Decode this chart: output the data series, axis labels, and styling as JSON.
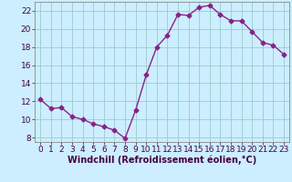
{
  "x": [
    0,
    1,
    2,
    3,
    4,
    5,
    6,
    7,
    8,
    9,
    10,
    11,
    12,
    13,
    14,
    15,
    16,
    17,
    18,
    19,
    20,
    21,
    22,
    23
  ],
  "y": [
    12.2,
    11.2,
    11.3,
    10.3,
    10.0,
    9.5,
    9.2,
    8.8,
    7.9,
    11.0,
    14.9,
    18.0,
    19.3,
    21.6,
    21.5,
    22.4,
    22.6,
    21.6,
    20.9,
    20.9,
    19.7,
    18.5,
    18.2,
    17.2
  ],
  "line_color": "#882288",
  "marker": "D",
  "markersize": 2.5,
  "linewidth": 1.0,
  "bg_color": "#cceeff",
  "grid_color": "#99cccc",
  "xlabel": "Windchill (Refroidissement éolien,°C)",
  "ylabel": "",
  "xlim": [
    -0.5,
    23.5
  ],
  "ylim": [
    7.5,
    23.0
  ],
  "yticks": [
    8,
    10,
    12,
    14,
    16,
    18,
    20,
    22
  ],
  "xticks": [
    0,
    1,
    2,
    3,
    4,
    5,
    6,
    7,
    8,
    9,
    10,
    11,
    12,
    13,
    14,
    15,
    16,
    17,
    18,
    19,
    20,
    21,
    22,
    23
  ],
  "xlabel_fontsize": 7.0,
  "tick_fontsize": 6.5
}
